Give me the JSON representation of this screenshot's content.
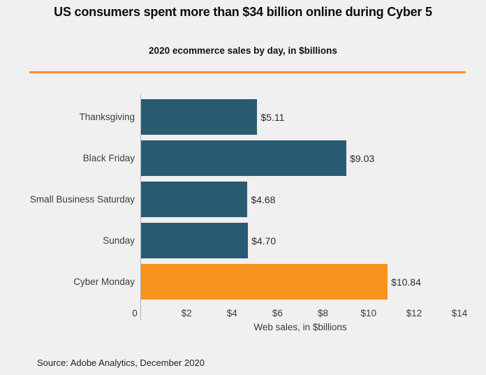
{
  "page": {
    "background_color": "#f0f0f1",
    "divider_color": "#f7941e"
  },
  "header": {
    "title": "US consumers spent more than $34 billion online during Cyber 5",
    "subtitle": "2020 ecommerce sales by day, in $billions"
  },
  "chart_data": {
    "type": "bar",
    "orientation": "horizontal",
    "title": "2020 ecommerce sales by day, in $billions",
    "categories": [
      "Thanksgiving",
      "Black Friday",
      "Small Business Saturday",
      "Sunday",
      "Cyber Monday"
    ],
    "values": [
      5.11,
      9.03,
      4.68,
      4.7,
      10.84
    ],
    "value_labels": [
      "$5.11",
      "$9.03",
      "$4.68",
      "$4.70",
      "$10.84"
    ],
    "bar_colors": [
      "#295c74",
      "#295c74",
      "#295c74",
      "#295c74",
      "#f7941e"
    ],
    "default_bar_color": "#295c74",
    "highlight_bar_color": "#f7941e",
    "xlabel": "Web sales, in $billions",
    "xlim": [
      0,
      14
    ],
    "x_tick_values": [
      0,
      2,
      4,
      6,
      8,
      10,
      12,
      14
    ],
    "x_tick_labels": [
      "0",
      "$2",
      "$4",
      "$6",
      "$8",
      "$10",
      "$12",
      "$14"
    ],
    "grid": false,
    "legend": "none",
    "axis_line_color": "#b4b4b4"
  },
  "footer": {
    "source": "Source: Adobe Analytics, December 2020"
  }
}
